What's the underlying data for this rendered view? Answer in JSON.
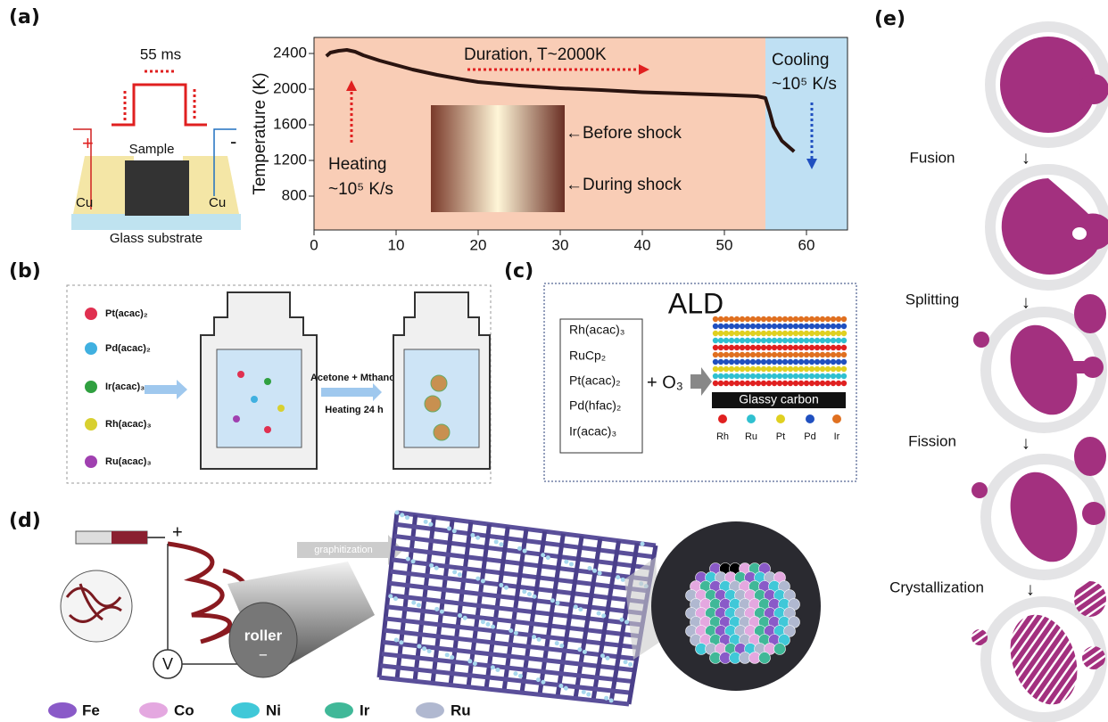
{
  "panel_labels": [
    "(a)",
    "(b)",
    "(c)",
    "(d)",
    "(e)"
  ],
  "schematic_a": {
    "pulse": "55 ms",
    "plus": "+",
    "minus": "-",
    "sample": "Sample",
    "left_electrode": "Cu",
    "right_electrode": "Cu",
    "substrate": "Glass substrate"
  },
  "chart_data": {
    "type": "line",
    "y_label": "Temperature (K)",
    "x": [
      1.5,
      2,
      3,
      4,
      5,
      6,
      8,
      10,
      12,
      15,
      18,
      20,
      25,
      30,
      35,
      40,
      45,
      50,
      54,
      55,
      55.5,
      56,
      57,
      58,
      58.5
    ],
    "series": [
      {
        "color": "#2a1410",
        "values": [
          2370,
          2410,
          2430,
          2440,
          2420,
          2380,
          2320,
          2270,
          2220,
          2160,
          2110,
          2080,
          2040,
          2010,
          1990,
          1965,
          1950,
          1935,
          1920,
          1900,
          1750,
          1580,
          1420,
          1340,
          1300
        ]
      }
    ],
    "xlim": [
      0,
      65
    ],
    "ylim": [
      420,
      2580
    ],
    "xticks": [
      0,
      10,
      20,
      30,
      40,
      50,
      60
    ],
    "yticks": [
      800,
      1200,
      1600,
      2000,
      2400
    ],
    "regions": [
      {
        "start": 0,
        "end": 55,
        "color": "#f9cdb6"
      },
      {
        "start": 55,
        "end": 65,
        "color": "#bfe0f3"
      }
    ],
    "annotations": {
      "duration": "Duration, T~2000K",
      "heating": "Heating",
      "heating_rate": "~10⁵ K/s",
      "cooling": "Cooling",
      "cooling_rate": "~10⁵ K/s",
      "before": "←Before shock",
      "during": "←During shock"
    }
  },
  "panel_b": {
    "precursors": [
      "Pt(acac)₂",
      "Pd(acac)₂",
      "Ir(acac)₃",
      "Rh(acac)₃",
      "Ru(acac)₃"
    ],
    "solvent": "Acetone + Mthanol",
    "condition": "Heating 24 h"
  },
  "panel_c": {
    "title": "ALD",
    "precursors": [
      "Rh(acac)₃",
      "RuCp₂",
      "Pt(acac)₂",
      "Pd(hfac)₂",
      "Ir(acac)₃"
    ],
    "oxidant": "+ O₃",
    "substrate": "Glassy carbon",
    "legend": [
      "Rh",
      "Ru",
      "Pt",
      "Pd",
      "Ir"
    ]
  },
  "panel_d": {
    "plus": "+",
    "process": "graphitization",
    "voltage": "V",
    "roller": "roller",
    "minus": "−",
    "legend": [
      "Fe",
      "Co",
      "Ni",
      "Ir",
      "Ru"
    ]
  },
  "panel_e": {
    "stages": [
      "Fusion",
      "Splitting",
      "Fission",
      "Crystallization"
    ]
  }
}
